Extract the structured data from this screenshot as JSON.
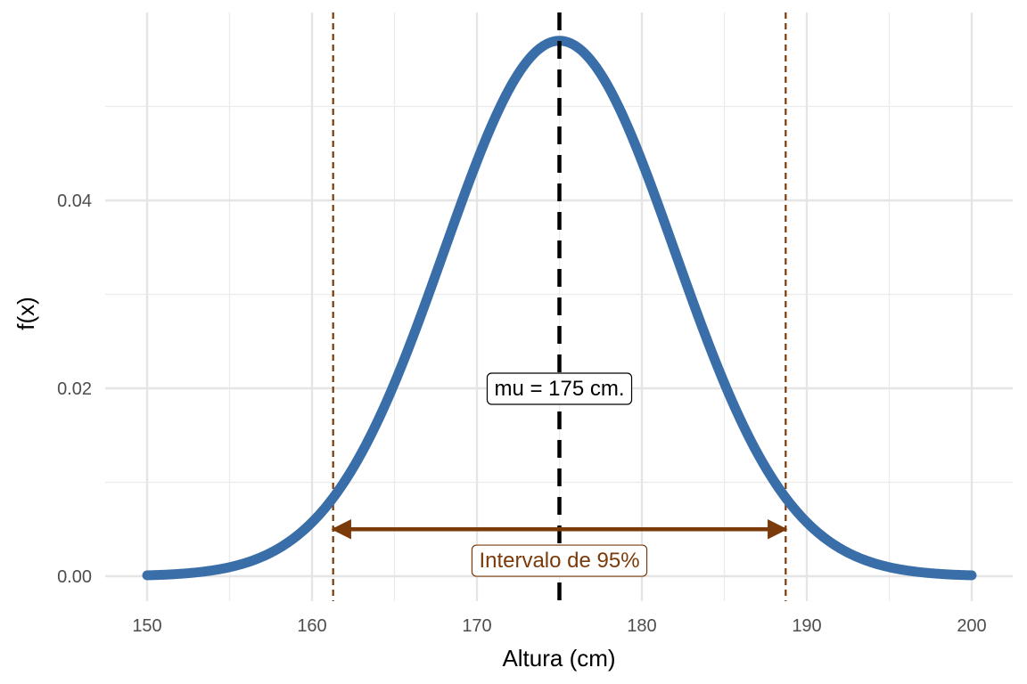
{
  "chart_data": {
    "type": "line",
    "title": "",
    "xlabel": "Altura (cm)",
    "ylabel": "f(x)",
    "xlim": [
      150,
      200
    ],
    "ylim": [
      0,
      0.057
    ],
    "x_ticks": [
      150,
      160,
      170,
      180,
      190,
      200
    ],
    "y_ticks": [
      0.0,
      0.02,
      0.04
    ],
    "x_tick_labels": [
      "150",
      "160",
      "170",
      "180",
      "190",
      "200"
    ],
    "y_tick_labels": [
      "0.00",
      "0.02",
      "0.04"
    ],
    "grid": true,
    "legend": "none",
    "series": [
      {
        "distribution": "normal",
        "mean": 175,
        "sd": 7,
        "x_range": [
          150,
          200
        ],
        "color": "#3A6EA8"
      }
    ],
    "mean_line": {
      "x": 175,
      "color": "#000000",
      "style": "dashed"
    },
    "interval": {
      "lower": 161.28,
      "upper": 188.72,
      "color": "#7B3A0A",
      "style": "dotted",
      "arrow_y": 0.005
    },
    "annotations": {
      "mu_label": {
        "text": "mu = 175 cm.",
        "x": 175,
        "y": 0.02
      },
      "interval_label": {
        "text": "Intervalo de 95%",
        "x": 175,
        "y": 0.0017
      }
    }
  }
}
